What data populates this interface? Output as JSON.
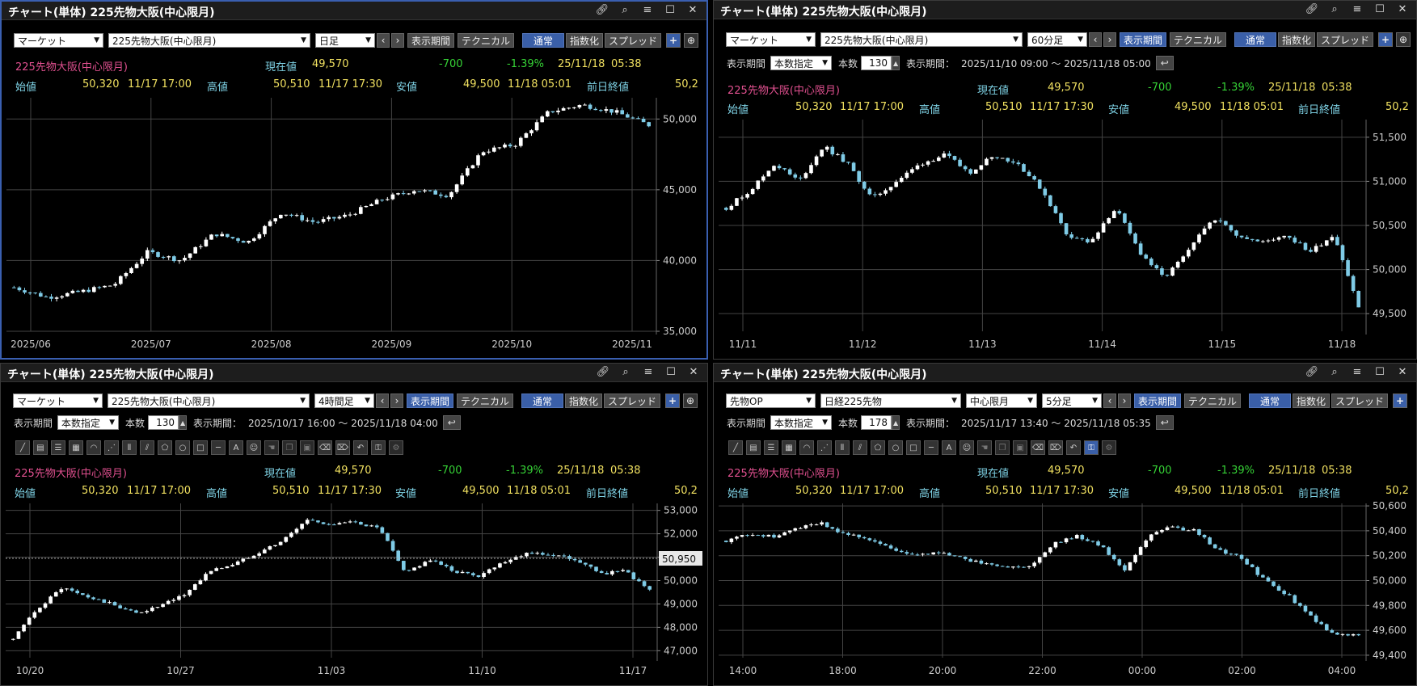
{
  "colors": {
    "up": "#ffffff",
    "down": "#7fcbe6",
    "grid": "#444444",
    "axis_text": "#cccccc",
    "accent": "#3a5fa8"
  },
  "panels": [
    {
      "id": "p1",
      "title": "チャート(単体) 225先物大阪(中心限月)",
      "market_select": "マーケット",
      "instrument_select": "225先物大阪(中心限月)",
      "interval_select": "日足",
      "buttons": {
        "period": "表示期間",
        "technical": "テクニカル",
        "normal": "通常",
        "index": "指数化",
        "spread": "スプレッド"
      },
      "quote": {
        "name": "225先物大阪(中心限月)",
        "current_label": "現在値",
        "current": "49,570",
        "change": "-700",
        "change_pct": "-1.39%",
        "date": "25/11/18",
        "time": "05:38",
        "open_label": "始値",
        "open": "50,320",
        "open_dt": "11/17  17:00",
        "high_label": "高値",
        "high": "50,510",
        "high_dt": "11/17  17:30",
        "low_label": "安値",
        "low": "49,500",
        "low_dt": "11/18  05:01",
        "prev_label": "前日終値",
        "prev": "50,2"
      },
      "y_ticks": [
        "50,000",
        "45,000",
        "40,000",
        "35,000"
      ],
      "x_ticks": [
        "2025/06",
        "2025/07",
        "2025/08",
        "2025/09",
        "2025/10",
        "2025/11"
      ]
    },
    {
      "id": "p2",
      "title": "チャート(単体) 225先物大阪(中心限月)",
      "market_select": "マーケット",
      "instrument_select": "225先物大阪(中心限月)",
      "interval_select": "60分足",
      "buttons": {
        "period": "表示期間",
        "technical": "テクニカル",
        "normal": "通常",
        "index": "指数化",
        "spread": "スプレッド"
      },
      "period_row": {
        "label": "表示期間",
        "mode": "本数指定",
        "count_label": "本数",
        "count": "130",
        "range_label": "表示期間：",
        "range": "2025/11/10 09:00 ～ 2025/11/18 05:00"
      },
      "quote": {
        "name": "225先物大阪(中心限月)",
        "current_label": "現在値",
        "current": "49,570",
        "change": "-700",
        "change_pct": "-1.39%",
        "date": "25/11/18",
        "time": "05:38",
        "open_label": "始値",
        "open": "50,320",
        "open_dt": "11/17  17:00",
        "high_label": "高値",
        "high": "50,510",
        "high_dt": "11/17  17:30",
        "low_label": "安値",
        "low": "49,500",
        "low_dt": "11/18  05:01",
        "prev_label": "前日終値",
        "prev": "50,2"
      },
      "y_ticks": [
        "51,500",
        "51,000",
        "50,500",
        "50,000",
        "49,500"
      ],
      "x_ticks": [
        "11/11",
        "11/12",
        "11/13",
        "11/14",
        "11/15",
        "11/18"
      ]
    },
    {
      "id": "p3",
      "title": "チャート(単体) 225先物大阪(中心限月)",
      "market_select": "マーケット",
      "instrument_select": "225先物大阪(中心限月)",
      "interval_select": "4時間足",
      "buttons": {
        "period": "表示期間",
        "technical": "テクニカル",
        "normal": "通常",
        "index": "指数化",
        "spread": "スプレッド"
      },
      "period_row": {
        "label": "表示期間",
        "mode": "本数指定",
        "count_label": "本数",
        "count": "130",
        "range_label": "表示期間：",
        "range": "2025/10/17 16:00 ～ 2025/11/18 04:00"
      },
      "quote": {
        "name": "225先物大阪(中心限月)",
        "current_label": "現在値",
        "current": "49,570",
        "change": "-700",
        "change_pct": "-1.39%",
        "date": "25/11/18",
        "time": "05:38",
        "open_label": "始値",
        "open": "50,320",
        "open_dt": "11/17  17:00",
        "high_label": "高値",
        "high": "50,510",
        "high_dt": "11/17  17:30",
        "low_label": "安値",
        "low": "49,500",
        "low_dt": "11/18  05:01",
        "prev_label": "前日終値",
        "prev": "50,2"
      },
      "y_ticks": [
        "53,000",
        "52,000",
        "51,000",
        "50,000",
        "49,000",
        "48,000",
        "47,000"
      ],
      "cursor_price": "50,950",
      "x_ticks": [
        "10/20",
        "10/27",
        "11/03",
        "11/10",
        "11/17"
      ]
    },
    {
      "id": "p4",
      "title": "チャート(単体) 225先物大阪(中心限月)",
      "market_select": "先物OP",
      "instrument_select": "日経225先物",
      "contract_select": "中心限月",
      "interval_select": "5分足",
      "buttons": {
        "period": "表示期間",
        "technical": "テクニカル",
        "normal": "通常",
        "index": "指数化",
        "spread": "スプレッド"
      },
      "period_row": {
        "label": "表示期間",
        "mode": "本数指定",
        "count_label": "本数",
        "count": "178",
        "range_label": "表示期間：",
        "range": "2025/11/17 13:40 ～ 2025/11/18 05:35"
      },
      "quote": {
        "name": "225先物大阪(中心限月)",
        "current_label": "現在値",
        "current": "49,570",
        "change": "-700",
        "change_pct": "-1.39%",
        "date": "25/11/18",
        "time": "05:38",
        "open_label": "始値",
        "open": "50,320",
        "open_dt": "11/17  17:00",
        "high_label": "高値",
        "high": "50,510",
        "high_dt": "11/17  17:30",
        "low_label": "安値",
        "low": "49,500",
        "low_dt": "11/18  05:01",
        "prev_label": "前日終値",
        "prev": "50,2"
      },
      "y_ticks": [
        "50,600",
        "50,400",
        "50,200",
        "50,000",
        "49,800",
        "49,600",
        "49,400"
      ],
      "x_ticks": [
        "14:00",
        "18:00",
        "20:00",
        "22:00",
        "00:00",
        "02:00",
        "04:00"
      ]
    }
  ],
  "chart_data": [
    {
      "type": "candlestick",
      "ylim": [
        35000,
        51500
      ],
      "y_ticks": [
        35000,
        40000,
        45000,
        50000
      ],
      "categories": [
        "2025/06",
        "2025/07",
        "2025/08",
        "2025/09",
        "2025/10",
        "2025/11"
      ],
      "close": [
        38100,
        37400,
        37800,
        38300,
        40600,
        40000,
        41900,
        41300,
        43400,
        42700,
        43200,
        44300,
        45000,
        44600,
        47700,
        48200,
        50500,
        51000,
        50500,
        49570
      ]
    },
    {
      "type": "candlestick",
      "ylim": [
        49300,
        51700
      ],
      "y_ticks": [
        49500,
        50000,
        50500,
        51000,
        51500
      ],
      "categories": [
        "11/11",
        "11/12",
        "11/13",
        "11/14",
        "11/15",
        "11/18"
      ],
      "close": [
        50700,
        50900,
        51200,
        51000,
        51400,
        51200,
        50800,
        51000,
        51200,
        51300,
        51100,
        51300,
        51200,
        50900,
        50400,
        50300,
        50700,
        50200,
        49900,
        50200,
        50600,
        50400,
        50300,
        50400,
        50200,
        50400,
        49570
      ]
    },
    {
      "type": "candlestick",
      "ylim": [
        46700,
        53300
      ],
      "y_ticks": [
        47000,
        48000,
        49000,
        50000,
        51000,
        52000,
        53000
      ],
      "categories": [
        "10/20",
        "10/27",
        "11/03",
        "11/10",
        "11/17"
      ],
      "close": [
        47500,
        48800,
        49700,
        49300,
        49000,
        48600,
        48900,
        49400,
        50400,
        50700,
        51200,
        51700,
        52600,
        52400,
        52500,
        52200,
        50300,
        50900,
        50400,
        50200,
        50800,
        51200,
        51100,
        50900,
        50300,
        50400,
        49570
      ]
    },
    {
      "type": "candlestick",
      "ylim": [
        49380,
        50620
      ],
      "y_ticks": [
        49400,
        49600,
        49800,
        50000,
        50200,
        50400,
        50600
      ],
      "categories": [
        "14:00",
        "18:00",
        "20:00",
        "22:00",
        "00:00",
        "02:00",
        "04:00"
      ],
      "close": [
        50320,
        50380,
        50350,
        50420,
        50470,
        50380,
        50340,
        50260,
        50200,
        50230,
        50180,
        50140,
        50100,
        50120,
        50300,
        50360,
        50280,
        50080,
        50350,
        50430,
        50400,
        50250,
        50180,
        50000,
        49880,
        49700,
        49560,
        49570
      ]
    }
  ]
}
